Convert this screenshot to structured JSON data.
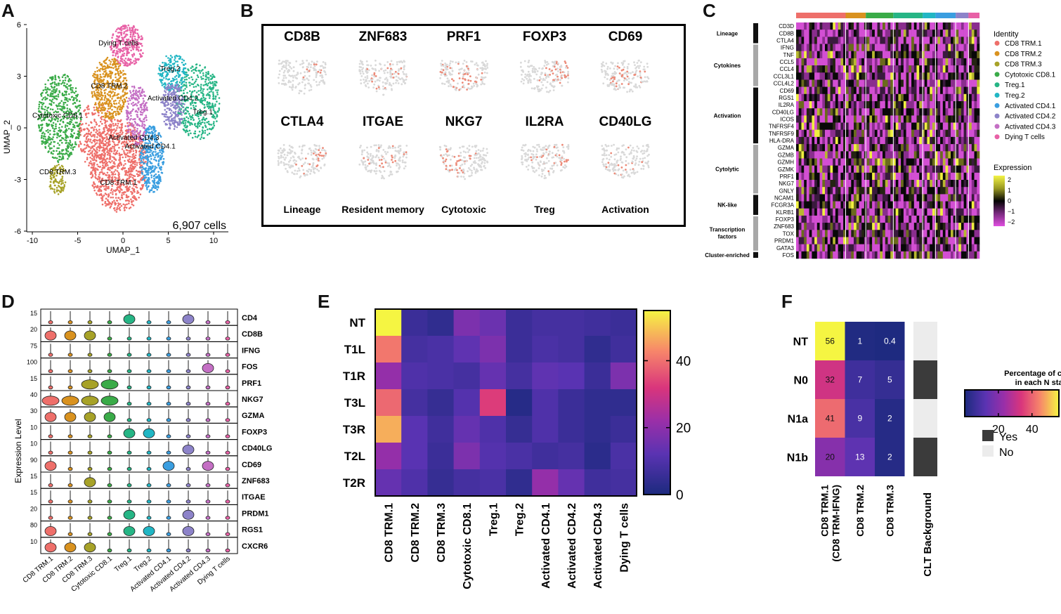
{
  "panels": {
    "A": {
      "letter": "A",
      "xlabel": "UMAP_1",
      "ylabel": "UMAP_2",
      "x_ticks": [
        "-10",
        "-5",
        "0",
        "5",
        "10"
      ],
      "y_ticks": [
        "6",
        "3",
        "0",
        "-3",
        "-6"
      ],
      "cell_count": "6,907 cells",
      "cluster_labels": [
        "Dying T cells",
        "Treg.2",
        "CD8 TRM.2",
        "Activated CD4.2",
        "Treg.1",
        "Cytotoxic CD8.1",
        "Activated CD4.3",
        "Activated CD4.1",
        "CD8 TRM.3",
        "CD8 TRM.1"
      ]
    },
    "B": {
      "letter": "B",
      "genes": [
        "CD8B",
        "ZNF683",
        "PRF1",
        "FOXP3",
        "CD69",
        "CTLA4",
        "ITGAE",
        "NKG7",
        "IL2RA",
        "CD40LG"
      ],
      "categories": [
        "Lineage",
        "Resident memory",
        "Cytotoxic",
        "Treg",
        "Activation"
      ]
    },
    "C": {
      "letter": "C",
      "groups": [
        {
          "name": "Lineage",
          "genes": [
            "CD3D",
            "CD8B",
            "CTLA4"
          ]
        },
        {
          "name": "Cytokines",
          "genes": [
            "IFNG",
            "TNF",
            "CCL5",
            "CCL4",
            "CCL3L1",
            "CCL4L2"
          ]
        },
        {
          "name": "Activation",
          "genes": [
            "CD69",
            "RGS1",
            "IL2RA",
            "CD40LG",
            "ICOS",
            "TNFRSF4",
            "TNFRSF9",
            "HLA-DRA"
          ]
        },
        {
          "name": "Cytolytic",
          "genes": [
            "GZMA",
            "GZMB",
            "GZMH",
            "GZMK",
            "PRF1",
            "NKG7",
            "GNLY"
          ]
        },
        {
          "name": "NK-like",
          "genes": [
            "NCAM1",
            "FCGR3A",
            "KLRB1"
          ]
        },
        {
          "name": "Transcription factors",
          "genes": [
            "FOXP3",
            "ZNF683",
            "TOX",
            "PRDM1",
            "GATA3"
          ]
        },
        {
          "name": "Cluster-enriched",
          "genes": [
            "FOS"
          ]
        }
      ],
      "identity_title": "Identity",
      "identities": [
        {
          "name": "CD8 TRM.1",
          "color": "#ee6f6a"
        },
        {
          "name": "CD8 TRM.2",
          "color": "#d9921f"
        },
        {
          "name": "CD8 TRM.3",
          "color": "#a7a228"
        },
        {
          "name": "Cytotoxic CD8.1",
          "color": "#3aab48"
        },
        {
          "name": "Treg.1",
          "color": "#26b585"
        },
        {
          "name": "Treg.2",
          "color": "#21b6c4"
        },
        {
          "name": "Activated CD4.1",
          "color": "#3a9ee0"
        },
        {
          "name": "Activated CD4.2",
          "color": "#8d83c9"
        },
        {
          "name": "Activated CD4.3",
          "color": "#c46fc4"
        },
        {
          "name": "Dying T cells",
          "color": "#e861a6"
        }
      ],
      "expression_title": "Expression",
      "expression_ticks": [
        "2",
        "1",
        "0",
        "−1",
        "−2"
      ]
    },
    "D": {
      "letter": "D",
      "ylabel": "Expression Level",
      "genes": [
        {
          "name": "CD4",
          "ymax": "15"
        },
        {
          "name": "CD8B",
          "ymax": "20"
        },
        {
          "name": "IFNG",
          "ymax": "75"
        },
        {
          "name": "FOS",
          "ymax": "100"
        },
        {
          "name": "PRF1",
          "ymax": "15"
        },
        {
          "name": "NKG7",
          "ymax": "40"
        },
        {
          "name": "GZMA",
          "ymax": "30"
        },
        {
          "name": "FOXP3",
          "ymax": "10"
        },
        {
          "name": "CD40LG",
          "ymax": "10"
        },
        {
          "name": "CD69",
          "ymax": "90"
        },
        {
          "name": "ZNF683",
          "ymax": "15"
        },
        {
          "name": "ITGAE",
          "ymax": "15"
        },
        {
          "name": "PRDM1",
          "ymax": "20"
        },
        {
          "name": "RGS1",
          "ymax": "80"
        },
        {
          "name": "CXCR6",
          "ymax": "10"
        }
      ],
      "clusters": [
        "CD8 TRM.1",
        "CD8 TRM.2",
        "CD8 TRM.3",
        "Cytotoxic CD8.1",
        "Treg.1",
        "Treg.2",
        "Activated CD4.1",
        "Activated CD4.2",
        "Activated CD4.3",
        "Dying T cells"
      ]
    },
    "E": {
      "letter": "E",
      "colorbar_ticks": [
        "40",
        "20",
        "0"
      ]
    },
    "F": {
      "letter": "F",
      "legend_title_line1": "Percentage of cluster",
      "legend_title_line2": "in each N stage",
      "legend_ticks": [
        "20",
        "40"
      ],
      "yes_label": "Yes",
      "no_label": "No",
      "clt_label": "CLT Background"
    }
  },
  "chart_data": [
    {
      "type": "heatmap",
      "id": "E",
      "rows": [
        "NT",
        "T1L",
        "T1R",
        "T3L",
        "T3R",
        "T2L",
        "T2R"
      ],
      "columns": [
        "CD8 TRM.1",
        "CD8 TRM.2",
        "CD8 TRM.3",
        "Cytotoxic CD8.1",
        "Treg.1",
        "Treg.2",
        "Activated CD4.1",
        "Activated CD4.2",
        "Activated CD4.3",
        "Dying T cells"
      ],
      "values": [
        [
          55,
          6,
          4,
          18,
          15,
          6,
          8,
          8,
          7,
          6
        ],
        [
          42,
          8,
          9,
          13,
          18,
          6,
          9,
          8,
          4,
          7
        ],
        [
          22,
          10,
          9,
          8,
          14,
          8,
          13,
          12,
          6,
          18
        ],
        [
          40,
          8,
          5,
          11,
          34,
          2,
          10,
          6,
          4,
          4
        ],
        [
          48,
          12,
          7,
          14,
          10,
          5,
          10,
          6,
          4,
          6
        ],
        [
          22,
          12,
          6,
          18,
          11,
          9,
          7,
          8,
          3,
          9
        ],
        [
          14,
          10,
          5,
          8,
          9,
          4,
          22,
          14,
          7,
          8
        ]
      ],
      "colorbar_range": [
        0,
        55
      ]
    },
    {
      "type": "heatmap",
      "id": "F",
      "rows": [
        "NT",
        "N0",
        "N1a",
        "N1b"
      ],
      "columns": [
        "CD8 TRM.1\n(CD8 TRM-IFNG)",
        "CD8 TRM.2",
        "CD8 TRM.3"
      ],
      "values": [
        [
          56,
          1,
          0.4
        ],
        [
          32,
          7,
          5
        ],
        [
          41,
          9,
          2
        ],
        [
          20,
          13,
          2
        ]
      ],
      "value_labels": [
        [
          "56",
          "1",
          "0.4"
        ],
        [
          "32",
          "7",
          "5"
        ],
        [
          "41",
          "9",
          "2"
        ],
        [
          "20",
          "13",
          "2"
        ]
      ],
      "clt_background": [
        false,
        true,
        false,
        true
      ],
      "colorbar_range": [
        0,
        56
      ]
    }
  ]
}
